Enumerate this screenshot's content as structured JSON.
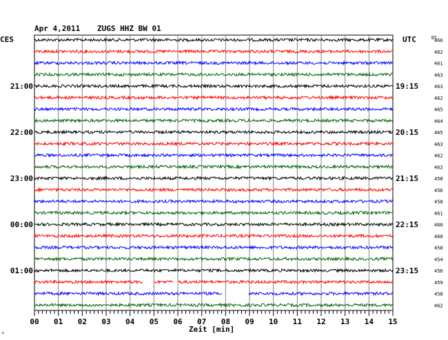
{
  "header": {
    "date": "Apr 4,2011",
    "station": "ZUGS HHZ BW 01",
    "left_zone": "CES",
    "right_zone": "UTC",
    "dc_label": "DC"
  },
  "footer": {
    "x_axis_label": "Zeit [min]",
    "corner_mark": "*"
  },
  "chart_data": {
    "type": "line",
    "title": "Apr 4,2011   ZUGS HHZ BW 01",
    "xlabel": "Zeit [min]",
    "xlim": [
      0,
      15
    ],
    "x_ticks": [
      "00",
      "01",
      "02",
      "03",
      "04",
      "05",
      "06",
      "07",
      "08",
      "09",
      "10",
      "11",
      "12",
      "13",
      "14",
      "15"
    ],
    "left_time_labels": [
      {
        "row": 4,
        "label": "21:00"
      },
      {
        "row": 8,
        "label": "22:00"
      },
      {
        "row": 12,
        "label": "23:00"
      },
      {
        "row": 16,
        "label": "00:00"
      },
      {
        "row": 20,
        "label": "01:00"
      }
    ],
    "right_time_labels": [
      {
        "row": 4,
        "label": "19:15"
      },
      {
        "row": 8,
        "label": "20:15"
      },
      {
        "row": 12,
        "label": "21:15"
      },
      {
        "row": 16,
        "label": "22:15"
      },
      {
        "row": 20,
        "label": "23:15"
      }
    ],
    "trace_colors": [
      "#000000",
      "#ff0000",
      "#0000ff",
      "#006400"
    ],
    "dc_values": [
      "466",
      "462",
      "461",
      "463",
      "463",
      "462",
      "465",
      "464",
      "465",
      "463",
      "462",
      "462",
      "458",
      "456",
      "458",
      "461",
      "460",
      "460",
      "458",
      "454",
      "456",
      "459",
      "458",
      "462"
    ],
    "gaps": [
      {
        "row": 21,
        "from_min": 4.55,
        "to_min": 5.0
      },
      {
        "row": 21,
        "from_min": 5.8,
        "to_min": 6.0
      },
      {
        "row": 22,
        "from_min": 7.85,
        "to_min": 8.95
      }
    ],
    "grid": true
  }
}
